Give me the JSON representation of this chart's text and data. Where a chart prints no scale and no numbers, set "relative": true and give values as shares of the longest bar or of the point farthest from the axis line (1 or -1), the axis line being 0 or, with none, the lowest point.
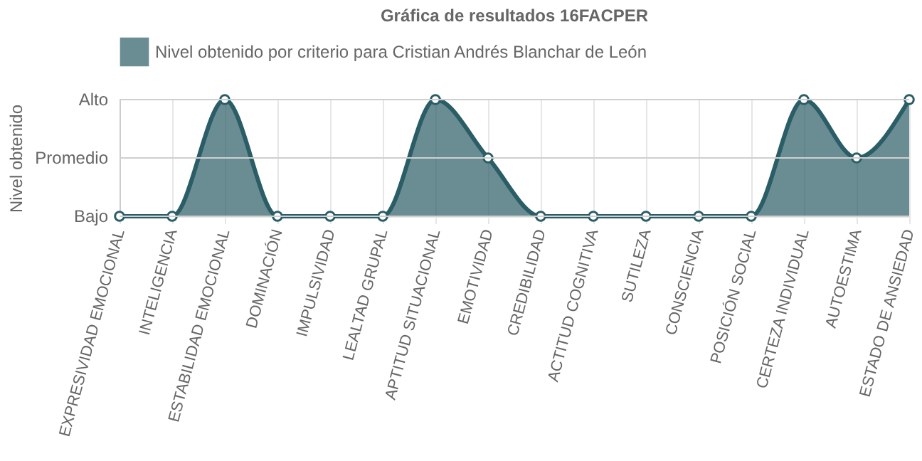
{
  "chart_data": {
    "type": "area",
    "title": "Gráfica de resultados 16FACPER",
    "ylabel": "Nivel obtenido",
    "categories": [
      "EXPRESIVIDAD EMOCIONAL",
      "INTELIGENCIA",
      "ESTABILIDAD EMOCIONAL",
      "DOMINACIÓN",
      "IMPULSIVIDAD",
      "LEALTAD GRUPAL",
      "APTITUD SITUACIONAL",
      "EMOTIVIDAD",
      "CREDIBILIDAD",
      "ACTITUD COGNITIVA",
      "SUTILEZA",
      "CONSCIENCIA",
      "POSICIÓN SOCIAL",
      "CERTEZA INDIVIDUAL",
      "AUTOESTIMA",
      "ESTADO DE ANSIEDAD"
    ],
    "series": [
      {
        "name": "Nivel obtenido por criterio para Cristian Andrés Blanchar de León",
        "color": "#2b5d66",
        "values": [
          0,
          0,
          1,
          0,
          0,
          0,
          1,
          0.5,
          0,
          0,
          0,
          0,
          0,
          1,
          0.5,
          1
        ]
      }
    ],
    "relative": true,
    "ref_lines": [
      {
        "axis": "y",
        "value": 0,
        "label": "Bajo",
        "color": "#cfcfcf"
      },
      {
        "axis": "y",
        "value": 0.5,
        "label": "Promedio",
        "color": "#cfcfcf"
      },
      {
        "axis": "y",
        "value": 1,
        "label": "Alto",
        "color": "#cfcfcf"
      }
    ],
    "grid": true,
    "legend": "top",
    "marker": "circle"
  }
}
